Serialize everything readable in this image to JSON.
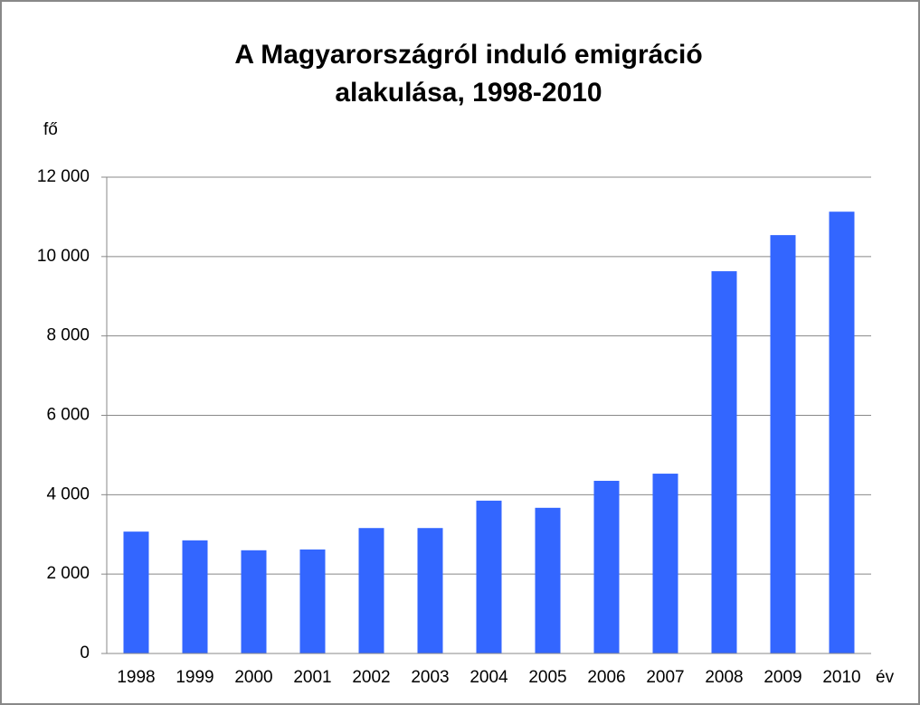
{
  "chart_data": {
    "type": "bar",
    "title": [
      "A Magyarországról induló emigráció",
      "alakulása, 1998-2010"
    ],
    "y_label": "fő",
    "x_label": "év",
    "categories": [
      "1998",
      "1999",
      "2000",
      "2001",
      "2002",
      "2003",
      "2004",
      "2005",
      "2006",
      "2007",
      "2008",
      "2009",
      "2010"
    ],
    "values": [
      3070,
      2850,
      2600,
      2620,
      3160,
      3160,
      3850,
      3670,
      4350,
      4530,
      9630,
      10540,
      11130
    ],
    "color": "#3366ff",
    "ylim": [
      0,
      12000
    ],
    "yticks": [
      0,
      {
        "value": 2000,
        "label": "2 000"
      },
      {
        "value": 4000,
        "label": "4 000"
      },
      {
        "value": 6000,
        "label": "6 000"
      },
      {
        "value": 8000,
        "label": "8 000"
      },
      {
        "value": 10000,
        "label": "10 000"
      },
      {
        "value": 12000,
        "label": "12 000"
      }
    ],
    "grid": true
  }
}
